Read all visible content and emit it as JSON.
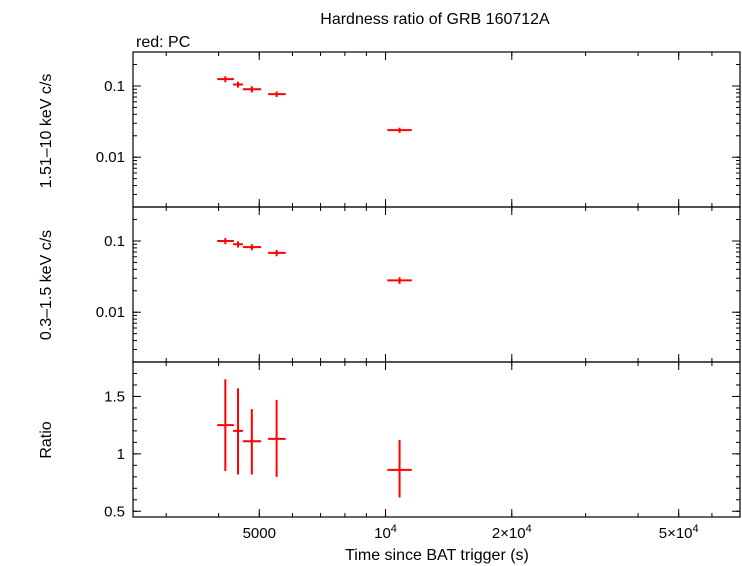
{
  "chart_data": {
    "type": "scatter",
    "title": "Hardness ratio of GRB 160712A",
    "subtitle": "red: PC",
    "xlabel": "Time since BAT trigger (s)",
    "xscale": "log",
    "xlim": [
      2500,
      70000
    ],
    "xticks": [
      {
        "value": 5000,
        "label": "5000"
      },
      {
        "value": 10000,
        "label": "10",
        "sup": "4"
      },
      {
        "value": 20000,
        "label": "2×10",
        "sup": "4"
      },
      {
        "value": 50000,
        "label": "5×10",
        "sup": "4"
      }
    ],
    "color": "#ff0000",
    "grid": false,
    "panels": [
      {
        "ylabel": "1.51–10 keV c/s",
        "yscale": "log",
        "ylim": [
          0.002,
          0.3
        ],
        "yticks": [
          {
            "value": 0.1,
            "label": "0.1"
          },
          {
            "value": 0.01,
            "label": "0.01"
          }
        ],
        "series": [
          {
            "points": [
              {
                "x": 4150,
                "xerr": [
                  180,
                  200
                ],
                "y": 0.125,
                "yerr": [
                  0.012,
                  0.012
                ]
              },
              {
                "x": 4450,
                "xerr": [
                  120,
                  120
                ],
                "y": 0.105,
                "yerr": [
                  0.01,
                  0.01
                ]
              },
              {
                "x": 4800,
                "xerr": [
                  230,
                  250
                ],
                "y": 0.09,
                "yerr": [
                  0.009,
                  0.009
                ]
              },
              {
                "x": 5500,
                "xerr": [
                  250,
                  280
                ],
                "y": 0.077,
                "yerr": [
                  0.007,
                  0.007
                ]
              },
              {
                "x": 10800,
                "xerr": [
                  700,
                  750
                ],
                "y": 0.024,
                "yerr": [
                  0.002,
                  0.002
                ]
              }
            ]
          }
        ]
      },
      {
        "ylabel": "0.3–1.5 keV c/s",
        "yscale": "log",
        "ylim": [
          0.002,
          0.3
        ],
        "yticks": [
          {
            "value": 0.1,
            "label": "0.1"
          },
          {
            "value": 0.01,
            "label": "0.01"
          }
        ],
        "series": [
          {
            "points": [
              {
                "x": 4150,
                "xerr": [
                  180,
                  200
                ],
                "y": 0.1,
                "yerr": [
                  0.01,
                  0.01
                ]
              },
              {
                "x": 4450,
                "xerr": [
                  120,
                  120
                ],
                "y": 0.09,
                "yerr": [
                  0.009,
                  0.009
                ]
              },
              {
                "x": 4800,
                "xerr": [
                  230,
                  250
                ],
                "y": 0.082,
                "yerr": [
                  0.008,
                  0.008
                ]
              },
              {
                "x": 5500,
                "xerr": [
                  250,
                  280
                ],
                "y": 0.068,
                "yerr": [
                  0.007,
                  0.007
                ]
              },
              {
                "x": 10800,
                "xerr": [
                  700,
                  750
                ],
                "y": 0.028,
                "yerr": [
                  0.003,
                  0.003
                ]
              }
            ]
          }
        ]
      },
      {
        "ylabel": "Ratio",
        "yscale": "linear",
        "ylim": [
          0.45,
          1.8
        ],
        "yticks": [
          {
            "value": 0.5,
            "label": "0.5"
          },
          {
            "value": 1,
            "label": "1"
          },
          {
            "value": 1.5,
            "label": "1.5"
          }
        ],
        "series": [
          {
            "points": [
              {
                "x": 4150,
                "xerr": [
                  180,
                  200
                ],
                "y": 1.25,
                "yerr": [
                  0.4,
                  0.4
                ]
              },
              {
                "x": 4450,
                "xerr": [
                  120,
                  120
                ],
                "y": 1.2,
                "yerr": [
                  0.38,
                  0.37
                ]
              },
              {
                "x": 4800,
                "xerr": [
                  230,
                  250
                ],
                "y": 1.11,
                "yerr": [
                  0.29,
                  0.28
                ]
              },
              {
                "x": 5500,
                "xerr": [
                  250,
                  280
                ],
                "y": 1.13,
                "yerr": [
                  0.33,
                  0.34
                ]
              },
              {
                "x": 10800,
                "xerr": [
                  700,
                  750
                ],
                "y": 0.86,
                "yerr": [
                  0.24,
                  0.26
                ]
              }
            ]
          }
        ]
      }
    ]
  }
}
